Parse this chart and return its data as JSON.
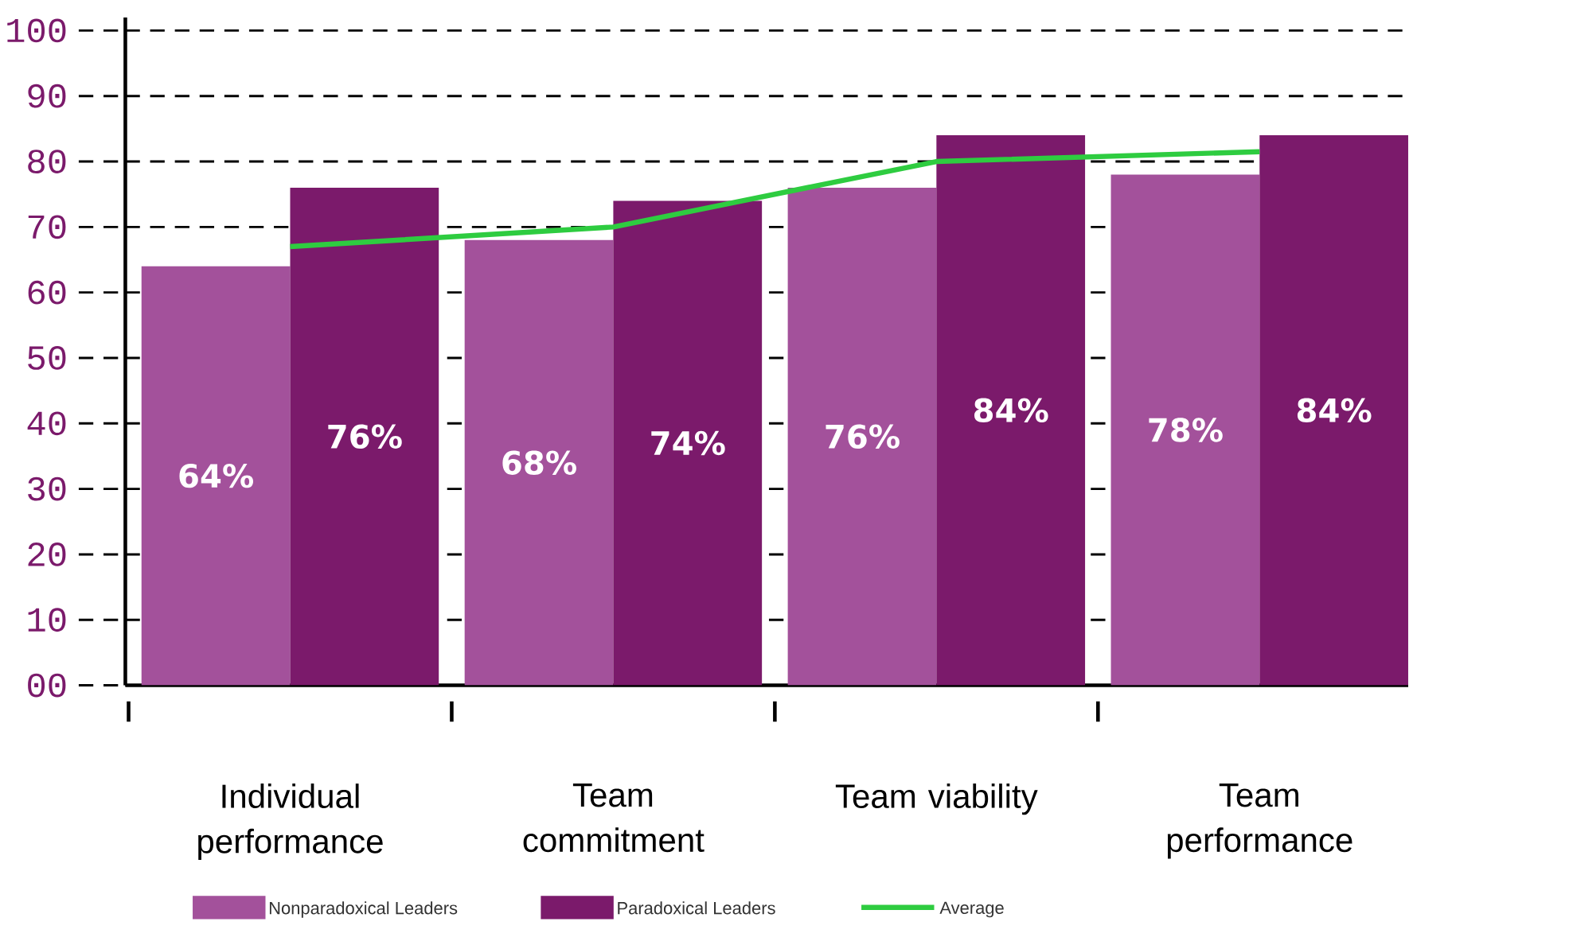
{
  "chart_data": {
    "type": "bar",
    "categories": [
      "Individual performance",
      "Team commitment",
      "Team viability",
      "Team performance"
    ],
    "series": [
      {
        "name": "Nonparadoxical Leaders",
        "color": "#a3519b",
        "values": [
          64,
          68,
          76,
          78
        ],
        "value_labels": [
          "64%",
          "68%",
          "76%",
          "78%"
        ]
      },
      {
        "name": "Paradoxical Leaders",
        "color": "#7b1a6b",
        "values": [
          76,
          74,
          84,
          84
        ],
        "value_labels": [
          "76%",
          "74%",
          "84%",
          "84%"
        ]
      },
      {
        "name": "Average",
        "type": "line",
        "color": "#2ecc40",
        "values": [
          67,
          70,
          80,
          81.5
        ]
      }
    ],
    "ylim": [
      0,
      102
    ],
    "yticks": [
      {
        "value": 0,
        "label": "00"
      },
      10,
      20,
      30,
      40,
      50,
      60,
      70,
      80,
      90,
      100
    ],
    "grid": "y",
    "legend": "bottom",
    "marker": "none",
    "line_style": "solid"
  }
}
